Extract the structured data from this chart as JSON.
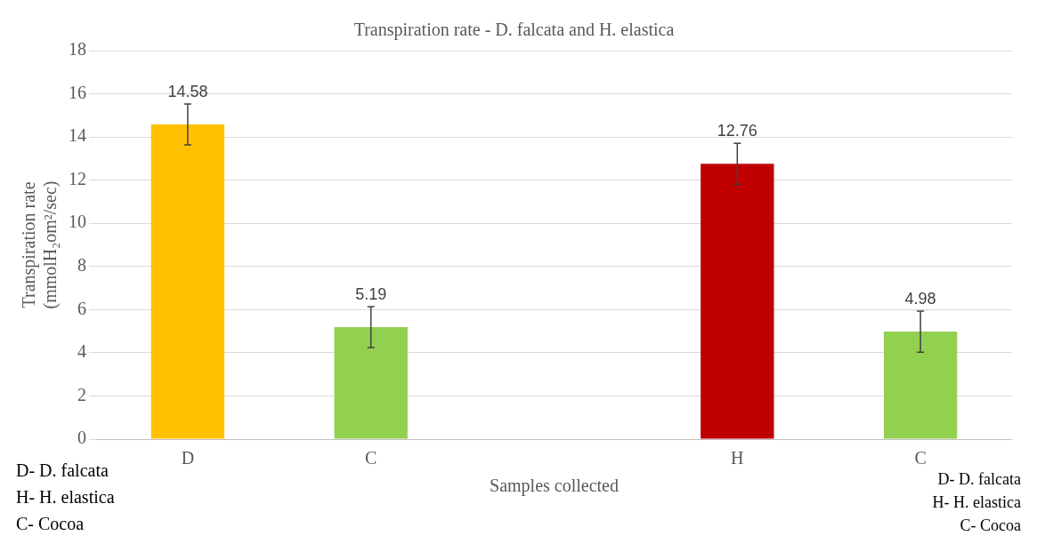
{
  "chart_data": {
    "type": "bar",
    "title": "Transpiration rate - D. falcata and H. elastica",
    "xlabel": "Samples collected",
    "ylabel": "Transpiration rate\n(mmolH₂om²/sec)",
    "categories": [
      "D",
      "C",
      null,
      "H",
      "C"
    ],
    "values": [
      14.58,
      5.19,
      null,
      12.76,
      4.98
    ],
    "colors": [
      "#ffc000",
      "#92d050",
      "#92d050",
      "#c00000",
      "#92d050"
    ],
    "errors": [
      0.95,
      0.95,
      null,
      0.95,
      0.95
    ],
    "ylim": [
      0,
      18
    ],
    "yticks": [
      0,
      2,
      4,
      6,
      8,
      10,
      12,
      14,
      16,
      18
    ],
    "grid": "y",
    "legend": false,
    "data_labels": true,
    "annotations": [
      "D- D. falcata",
      "H- H. elastica",
      "C- Cocoa",
      "D- D. falcata",
      "H- H. elastica",
      "C- Cocoa"
    ]
  }
}
